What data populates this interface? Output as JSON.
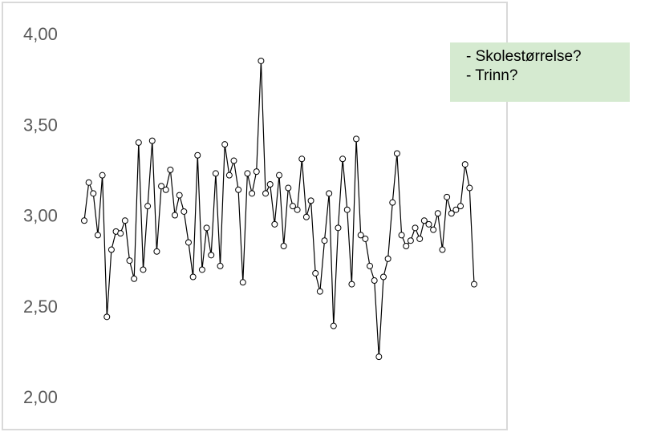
{
  "note": {
    "lines": [
      "- Skolestørrelse?",
      "- Trinn?"
    ]
  },
  "chart_data": {
    "type": "line",
    "title": "",
    "xlabel": "",
    "ylabel": "",
    "ylim": [
      2.0,
      4.0
    ],
    "yticks": [
      2.0,
      2.5,
      3.0,
      3.5,
      4.0
    ],
    "ytick_labels": [
      "2,00",
      "2,50",
      "3,00",
      "3,50",
      "4,00"
    ],
    "grid": false,
    "marker": "open-circle",
    "line_color": "#000000",
    "series": [
      {
        "values": [
          2.97,
          3.18,
          3.12,
          2.89,
          3.22,
          2.44,
          2.81,
          2.91,
          2.9,
          2.97,
          2.75,
          2.65,
          3.4,
          2.7,
          3.05,
          3.41,
          2.8,
          3.16,
          3.14,
          3.25,
          3.0,
          3.11,
          3.02,
          2.85,
          2.66,
          3.33,
          2.7,
          2.93,
          2.78,
          3.23,
          2.72,
          3.39,
          3.22,
          3.3,
          3.14,
          2.63,
          3.23,
          3.12,
          3.24,
          3.85,
          3.12,
          3.17,
          2.95,
          3.22,
          2.83,
          3.15,
          3.05,
          3.03,
          3.31,
          2.99,
          3.08,
          2.68,
          2.58,
          2.86,
          3.12,
          2.39,
          2.93,
          3.31,
          3.03,
          2.62,
          3.42,
          2.89,
          2.87,
          2.72,
          2.64,
          2.22,
          2.66,
          2.76,
          3.07,
          3.34,
          2.89,
          2.83,
          2.86,
          2.93,
          2.87,
          2.97,
          2.95,
          2.92,
          3.01,
          2.81,
          3.1,
          3.01,
          3.03,
          3.05,
          3.28,
          3.15,
          2.62
        ]
      }
    ]
  }
}
